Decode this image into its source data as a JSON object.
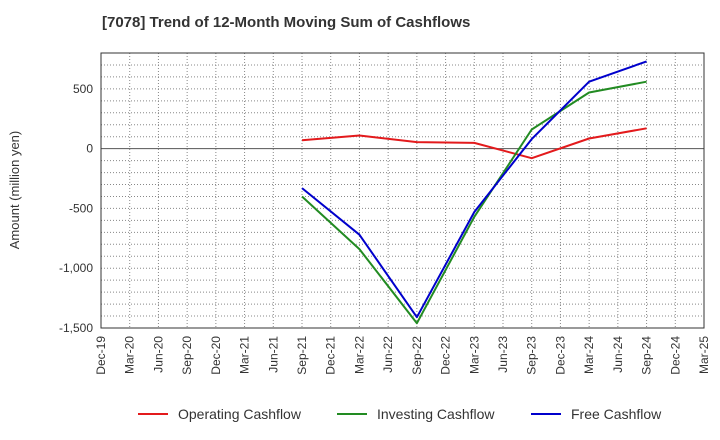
{
  "chart_data": {
    "type": "line",
    "title": "[7078]  Trend of 12-Month Moving Sum of Cashflows",
    "xlabel": "",
    "ylabel": "Amount (million yen)",
    "categories": [
      "Dec-19",
      "Mar-20",
      "Jun-20",
      "Sep-20",
      "Dec-20",
      "Mar-21",
      "Jun-21",
      "Sep-21",
      "Dec-21",
      "Mar-22",
      "Jun-22",
      "Sep-22",
      "Dec-22",
      "Mar-23",
      "Jun-23",
      "Sep-23",
      "Dec-23",
      "Mar-24",
      "Jun-24",
      "Sep-24",
      "Dec-24",
      "Mar-25"
    ],
    "ylim": [
      -1500,
      800
    ],
    "yticks": [
      500,
      0,
      -500,
      -1000,
      -1500
    ],
    "ytick_labels": [
      "500",
      "0",
      "-500",
      "-1,000",
      "-1,500"
    ],
    "grid": true,
    "legend_position": "bottom",
    "series": [
      {
        "name": "Operating Cashflow",
        "color": "#e31a1c",
        "values": [
          null,
          null,
          null,
          null,
          null,
          null,
          null,
          70,
          null,
          110,
          null,
          55,
          null,
          48,
          null,
          -80,
          null,
          85,
          null,
          170,
          null,
          null
        ]
      },
      {
        "name": "Investing Cashflow",
        "color": "#228b22",
        "values": [
          null,
          null,
          null,
          null,
          null,
          null,
          null,
          -400,
          null,
          -840,
          null,
          -1460,
          null,
          -570,
          null,
          160,
          null,
          470,
          null,
          560,
          null,
          null
        ]
      },
      {
        "name": "Free Cashflow",
        "color": "#0000cc",
        "values": [
          null,
          null,
          null,
          null,
          null,
          null,
          null,
          -330,
          null,
          -720,
          null,
          -1410,
          null,
          -530,
          null,
          80,
          null,
          560,
          null,
          730,
          null,
          null
        ]
      }
    ]
  }
}
